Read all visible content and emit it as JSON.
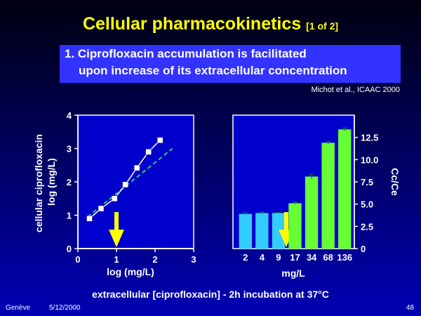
{
  "slide": {
    "title": "Cellular pharmacokinetics",
    "title_suffix": "[1 of 2]",
    "subtitle_line1": "1. Ciprofloxacin accumulation is facilitated",
    "subtitle_line2": "upon increase of its extracellular concentration",
    "reference": "Michot et al., ICAAC 2000",
    "caption": "extracellular  [ciprofloxacin]  -  2h incubation at 37°C",
    "footer_left": "Genève",
    "footer_date": "5/12/2000",
    "page_number": "48"
  },
  "colors": {
    "title": "#ffff00",
    "subtitle_box": "#3333ff",
    "line_series": "#ffffff",
    "fit_line": "#33cc66",
    "bar_low": "#33ccff",
    "bar_high": "#66ff33",
    "arrow": "#ffff00"
  },
  "chart_data": [
    {
      "type": "line",
      "xlabel": "log (mg/L)",
      "ylabel": "cellular ciprofloxacin\nlog (mg/L)",
      "xlim": [
        0,
        3
      ],
      "ylim": [
        0,
        4
      ],
      "xticks": [
        "0",
        "1",
        "2",
        "3"
      ],
      "yticks": [
        "0",
        "1",
        "2",
        "3",
        "4"
      ],
      "grid": false,
      "series": [
        {
          "x": [
            0.3,
            0.6,
            0.95,
            1.23,
            1.53,
            1.83,
            2.13
          ],
          "y": [
            0.9,
            1.2,
            1.5,
            1.92,
            2.42,
            2.9,
            3.25
          ]
        }
      ],
      "fit_line": {
        "x": [
          0.25,
          2.45
        ],
        "y": [
          0.95,
          3.0
        ]
      },
      "arrow_x": 1.0
    },
    {
      "type": "bar",
      "xlabel": "mg/L",
      "ylabel": "Cc/Ce",
      "categories": [
        "2",
        "4",
        "9",
        "17",
        "34",
        "68",
        "136"
      ],
      "values": [
        3.9,
        4.0,
        4.0,
        5.1,
        8.1,
        11.9,
        13.4
      ],
      "errors": [
        0.1,
        0.1,
        0.05,
        0.1,
        0.25,
        0.15,
        0.15
      ],
      "ylim": [
        0,
        15
      ],
      "yticks": [
        "0",
        "2.5",
        "5.0",
        "7.5",
        "10.0",
        "12.5"
      ],
      "grid": false,
      "arrow_category": "9"
    }
  ]
}
